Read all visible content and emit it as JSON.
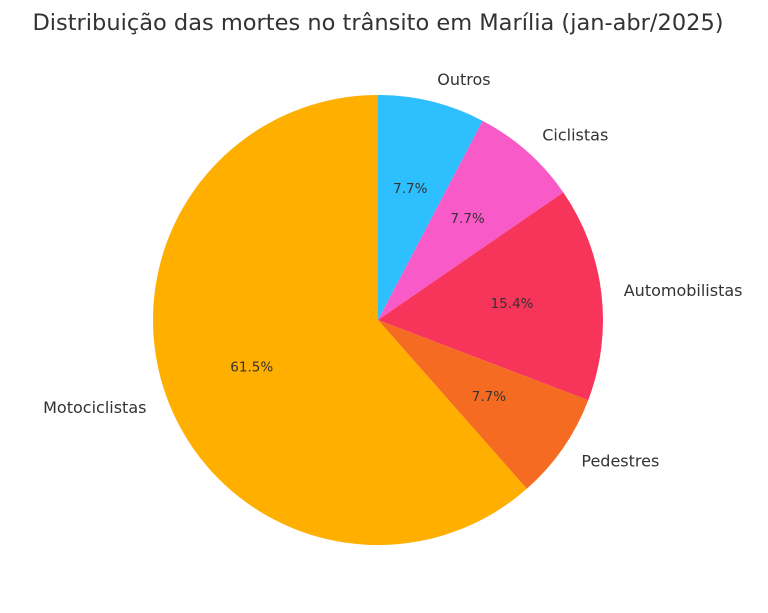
{
  "chart_data": {
    "type": "pie",
    "title": "Distribuição das mortes no trânsito em Marília (jan-abr/2025)",
    "start_angle_deg": 90,
    "direction": "clockwise",
    "legend": "none",
    "slices": [
      {
        "label": "Outros",
        "value": 7.7,
        "pct_label": "7.7%",
        "color": "#2EBFFF"
      },
      {
        "label": "Ciclistas",
        "value": 7.7,
        "pct_label": "7.7%",
        "color": "#F85AC8"
      },
      {
        "label": "Automobilistas",
        "value": 15.4,
        "pct_label": "15.4%",
        "color": "#F73459"
      },
      {
        "label": "Pedestres",
        "value": 7.7,
        "pct_label": "7.7%",
        "color": "#F46B21"
      },
      {
        "label": "Motociclistas",
        "value": 61.5,
        "pct_label": "61.5%",
        "color": "#FFAF00"
      }
    ]
  }
}
